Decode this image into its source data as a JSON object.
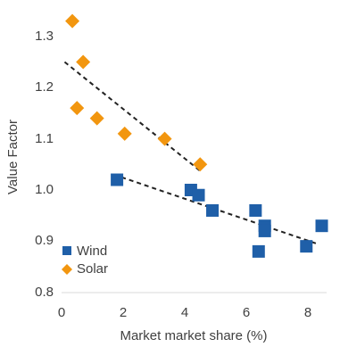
{
  "chart_data": {
    "type": "scatter",
    "xlabel": "Market market share (%)",
    "ylabel": "Value Factor",
    "xlim": [
      0,
      8.6
    ],
    "ylim": [
      0.8,
      1.36
    ],
    "xticks": [
      0,
      2,
      4,
      6,
      8
    ],
    "yticks": [
      0.8,
      0.9,
      1.0,
      1.1,
      1.2,
      1.3
    ],
    "ytick_labels": [
      "0.8",
      "0.9",
      "1.0",
      "1.1",
      "1.2",
      "1.3"
    ],
    "grid": false,
    "legend_position": "bottom-left",
    "series": [
      {
        "name": "Wind",
        "marker": "square",
        "color": "#1f5fa8",
        "points": [
          {
            "x": 1.8,
            "y": 1.02
          },
          {
            "x": 4.2,
            "y": 1.0
          },
          {
            "x": 4.45,
            "y": 0.99
          },
          {
            "x": 4.9,
            "y": 0.96
          },
          {
            "x": 6.3,
            "y": 0.96
          },
          {
            "x": 6.6,
            "y": 0.93
          },
          {
            "x": 6.6,
            "y": 0.92
          },
          {
            "x": 6.4,
            "y": 0.88
          },
          {
            "x": 7.95,
            "y": 0.89
          },
          {
            "x": 8.45,
            "y": 0.93
          }
        ],
        "trendline": {
          "x": [
            1.7,
            8.3
          ],
          "y": [
            1.03,
            0.895
          ]
        }
      },
      {
        "name": "Solar",
        "marker": "diamond",
        "color": "#f2960f",
        "points": [
          {
            "x": 0.35,
            "y": 1.33
          },
          {
            "x": 0.7,
            "y": 1.25
          },
          {
            "x": 0.5,
            "y": 1.16
          },
          {
            "x": 1.15,
            "y": 1.14
          },
          {
            "x": 2.05,
            "y": 1.11
          },
          {
            "x": 3.35,
            "y": 1.1
          },
          {
            "x": 4.5,
            "y": 1.05
          }
        ],
        "trendline": {
          "x": [
            0.1,
            4.55
          ],
          "y": [
            1.25,
            1.035
          ]
        }
      }
    ]
  }
}
